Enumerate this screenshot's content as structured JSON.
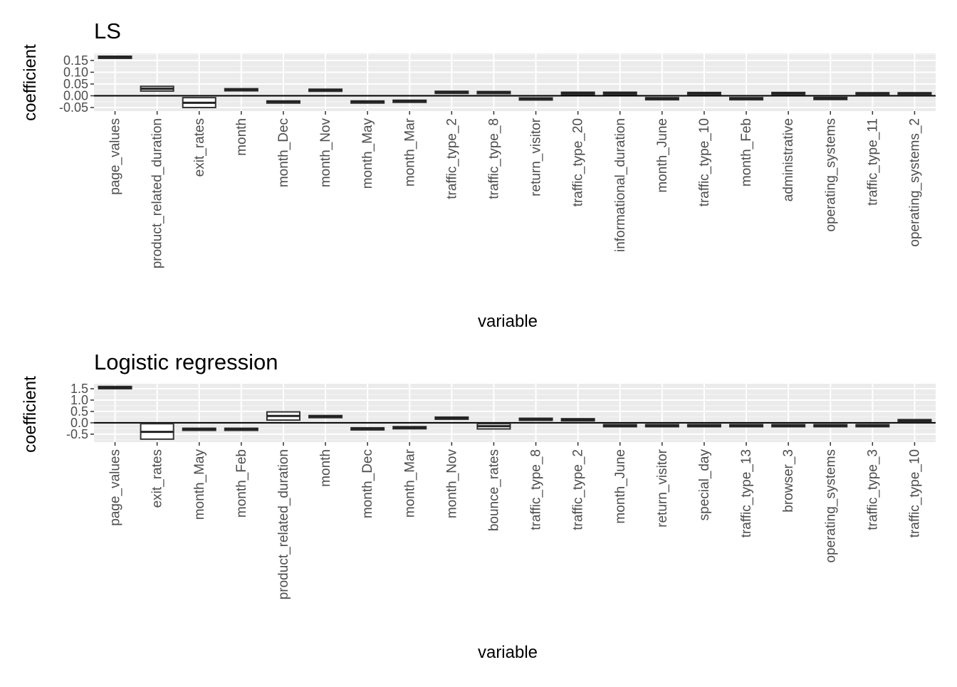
{
  "chart_data": [
    {
      "type": "boxplot",
      "title": "LS",
      "xlabel": "variable",
      "ylabel": "coefficient",
      "ylim": [
        -0.065,
        0.18
      ],
      "yticks": [
        -0.05,
        0.0,
        0.05,
        0.1,
        0.15
      ],
      "ytick_labels": [
        "-0.05",
        "0.00",
        "0.05",
        "0.10",
        "0.15"
      ],
      "hline": 0,
      "grid": true,
      "categories": [
        "page_values",
        "product_related_duration",
        "exit_rates",
        "month",
        "month_Dec",
        "month_Nov",
        "month_May",
        "month_Mar",
        "traffic_type_2",
        "traffic_type_8",
        "return_visitor",
        "traffic_type_20",
        "informational_duration",
        "month_June",
        "traffic_type_10",
        "month_Feb",
        "administrative",
        "operating_systems",
        "traffic_type_11",
        "operating_systems_2"
      ],
      "boxes": [
        {
          "q1": 0.162,
          "median": 0.165,
          "q3": 0.168
        },
        {
          "q1": 0.02,
          "median": 0.03,
          "q3": 0.04
        },
        {
          "q1": -0.05,
          "median": -0.03,
          "q3": -0.008
        },
        {
          "q1": 0.022,
          "median": 0.026,
          "q3": 0.03
        },
        {
          "q1": -0.028,
          "median": -0.025,
          "q3": -0.022
        },
        {
          "q1": 0.02,
          "median": 0.024,
          "q3": 0.028
        },
        {
          "q1": -0.028,
          "median": -0.025,
          "q3": -0.022
        },
        {
          "q1": -0.025,
          "median": -0.022,
          "q3": -0.019
        },
        {
          "q1": 0.013,
          "median": 0.016,
          "q3": 0.019
        },
        {
          "q1": 0.012,
          "median": 0.015,
          "q3": 0.018
        },
        {
          "q1": -0.017,
          "median": -0.013,
          "q3": -0.009
        },
        {
          "q1": 0.009,
          "median": 0.012,
          "q3": 0.015
        },
        {
          "q1": 0.009,
          "median": 0.012,
          "q3": 0.015
        },
        {
          "q1": -0.016,
          "median": -0.012,
          "q3": -0.008
        },
        {
          "q1": 0.008,
          "median": 0.011,
          "q3": 0.014
        },
        {
          "q1": -0.016,
          "median": -0.012,
          "q3": -0.008
        },
        {
          "q1": 0.008,
          "median": 0.011,
          "q3": 0.014
        },
        {
          "q1": -0.015,
          "median": -0.011,
          "q3": -0.007
        },
        {
          "q1": 0.007,
          "median": 0.01,
          "q3": 0.013
        },
        {
          "q1": 0.007,
          "median": 0.01,
          "q3": 0.013
        }
      ]
    },
    {
      "type": "boxplot",
      "title": "Logistic regression",
      "xlabel": "variable",
      "ylabel": "coefficient",
      "ylim": [
        -0.85,
        1.72
      ],
      "yticks": [
        -0.5,
        0.0,
        0.5,
        1.0,
        1.5
      ],
      "ytick_labels": [
        "-0.5",
        "0.0",
        "0.5",
        "1.0",
        "1.5"
      ],
      "hline": 0,
      "grid": true,
      "categories": [
        "page_values",
        "exit_rates",
        "month_May",
        "month_Feb",
        "product_related_duration",
        "month",
        "month_Dec",
        "month_Mar",
        "month_Nov",
        "bounce_rates",
        "traffic_type_8",
        "traffic_type_2",
        "month_June",
        "return_visitor",
        "special_day",
        "traffic_type_13",
        "browser_3",
        "operating_systems",
        "traffic_type_3",
        "traffic_type_10"
      ],
      "boxes": [
        {
          "q1": 1.5,
          "median": 1.55,
          "q3": 1.6
        },
        {
          "q1": -0.72,
          "median": -0.4,
          "q3": -0.04
        },
        {
          "q1": -0.32,
          "median": -0.28,
          "q3": -0.24
        },
        {
          "q1": -0.32,
          "median": -0.28,
          "q3": -0.24
        },
        {
          "q1": 0.12,
          "median": 0.3,
          "q3": 0.48
        },
        {
          "q1": 0.24,
          "median": 0.28,
          "q3": 0.32
        },
        {
          "q1": -0.3,
          "median": -0.26,
          "q3": -0.22
        },
        {
          "q1": -0.25,
          "median": -0.21,
          "q3": -0.17
        },
        {
          "q1": 0.17,
          "median": 0.21,
          "q3": 0.25
        },
        {
          "q1": -0.27,
          "median": -0.15,
          "q3": -0.04
        },
        {
          "q1": 0.12,
          "median": 0.16,
          "q3": 0.2
        },
        {
          "q1": 0.1,
          "median": 0.14,
          "q3": 0.18
        },
        {
          "q1": -0.16,
          "median": -0.12,
          "q3": -0.08
        },
        {
          "q1": -0.16,
          "median": -0.12,
          "q3": -0.08
        },
        {
          "q1": -0.16,
          "median": -0.12,
          "q3": -0.08
        },
        {
          "q1": -0.16,
          "median": -0.12,
          "q3": -0.08
        },
        {
          "q1": -0.16,
          "median": -0.12,
          "q3": -0.08
        },
        {
          "q1": -0.16,
          "median": -0.12,
          "q3": -0.08
        },
        {
          "q1": -0.16,
          "median": -0.12,
          "q3": -0.08
        },
        {
          "q1": 0.06,
          "median": 0.1,
          "q3": 0.14
        }
      ]
    }
  ]
}
